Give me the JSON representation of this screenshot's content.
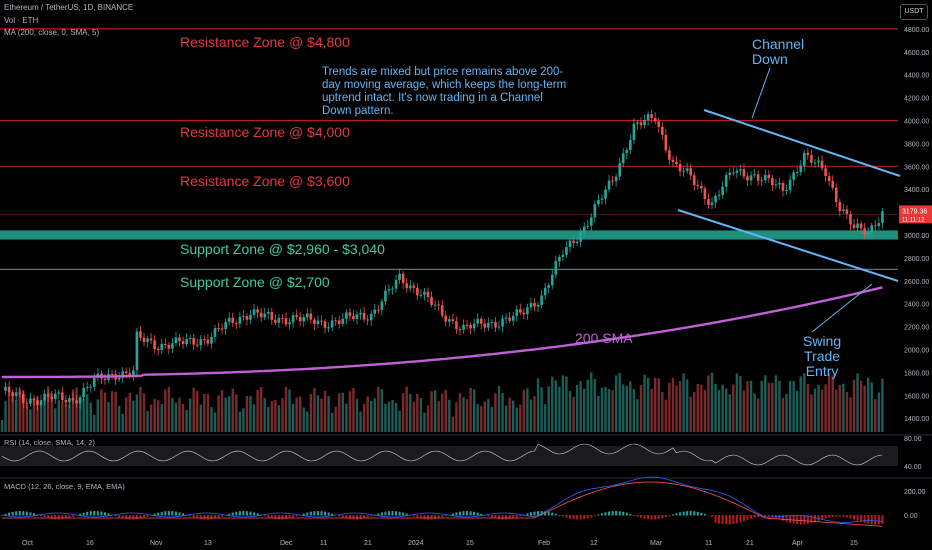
{
  "header": {
    "symbol_line": "Ethereum / TetherUS, 1D, BINANCE",
    "vol_line": "Vol · ETH",
    "ma_line": "MA (200, close, 0, SMA, 5)"
  },
  "currency_button": "USDT",
  "annotations": {
    "res_4800": "Resistance Zone @ $4,800",
    "res_4000": "Resistance Zone @ $4,000",
    "res_3600": "Resistance Zone @ $3,600",
    "sup_2960": "Support Zone @ $2,960 - $3,040",
    "sup_2700": "Support Zone @ $2,700",
    "note": "Trends are mixed but price remains above 200-day moving average, which keeps the long-term uptrend intact. It's now trading in a Channel Down pattern.",
    "channel": "Channel\nDown",
    "sma": "200 SMA",
    "swing": "Swing\nTrade\nEntry"
  },
  "indicators": {
    "rsi_label": "RSI (14, close, SMA, 14, 2)",
    "macd_label": "MACD (12, 26, close, 9, EMA, EMA)"
  },
  "colors": {
    "bull": "#26a69a",
    "bear": "#ef5350",
    "resistance": "#b71c1c",
    "support": "#1f8f7d",
    "sma": "#c05fd6",
    "channel": "#64b5f6"
  },
  "chart_data": {
    "type": "candlestick",
    "price_axis": {
      "ticks": [
        1400,
        1600,
        1800,
        2000,
        2200,
        2400,
        2600,
        2800,
        3000,
        3200,
        3400,
        3600,
        3800,
        4000,
        4200,
        4400,
        4600,
        4800
      ],
      "current_price": "3179.36",
      "countdown": "11:11:12"
    },
    "time_axis": [
      "Oct",
      "16",
      "Nov",
      "13",
      "Dec",
      "11",
      "21",
      "2024",
      "15",
      "Feb",
      "12",
      "Mar",
      "11",
      "21",
      "Apr",
      "15"
    ],
    "price_path": [
      [
        0,
        1640
      ],
      [
        6,
        1560
      ],
      [
        14,
        1580
      ],
      [
        20,
        1560
      ],
      [
        26,
        1720
      ],
      [
        32,
        1790
      ],
      [
        37,
        1800
      ],
      [
        38,
        2100
      ],
      [
        44,
        2040
      ],
      [
        52,
        2060
      ],
      [
        58,
        2100
      ],
      [
        64,
        2230
      ],
      [
        70,
        2330
      ],
      [
        76,
        2260
      ],
      [
        82,
        2280
      ],
      [
        90,
        2230
      ],
      [
        96,
        2260
      ],
      [
        104,
        2310
      ],
      [
        112,
        2620
      ],
      [
        118,
        2500
      ],
      [
        124,
        2300
      ],
      [
        130,
        2190
      ],
      [
        138,
        2230
      ],
      [
        146,
        2300
      ],
      [
        152,
        2470
      ],
      [
        158,
        2840
      ],
      [
        164,
        3070
      ],
      [
        172,
        3480
      ],
      [
        178,
        3940
      ],
      [
        184,
        4030
      ],
      [
        189,
        3620
      ],
      [
        194,
        3500
      ],
      [
        200,
        3280
      ],
      [
        206,
        3560
      ],
      [
        212,
        3520
      ],
      [
        220,
        3400
      ],
      [
        226,
        3680
      ],
      [
        232,
        3560
      ],
      [
        236,
        3250
      ],
      [
        240,
        3050
      ],
      [
        244,
        3030
      ],
      [
        248,
        3200
      ]
    ],
    "zones": {
      "resistance": [
        4800,
        4000,
        3600
      ],
      "support_band": [
        2960,
        3040
      ],
      "support": [
        2700
      ]
    },
    "rsi_axis": [
      "80.00",
      "40.00"
    ],
    "macd_axis": [
      "200.00",
      "0.00"
    ]
  }
}
